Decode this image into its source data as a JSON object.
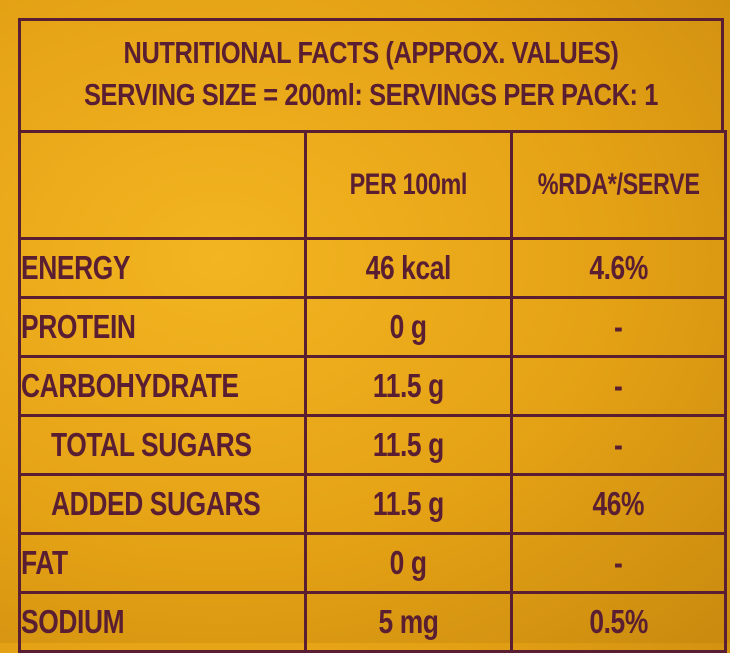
{
  "title": {
    "line1": "NUTRITIONAL FACTS  (APPROX. VALUES)",
    "line2": "SERVING SIZE = 200ml: SERVINGS PER PACK: 1"
  },
  "columns": {
    "nutrient": "",
    "per100": "PER 100ml",
    "rda": "%RDA*/SERVE"
  },
  "rows": [
    {
      "nutrient": "ENERGY",
      "per100": "46 kcal",
      "rda": "4.6%"
    },
    {
      "nutrient": "PROTEIN",
      "per100": "0 g",
      "rda": "-"
    },
    {
      "nutrient": "CARBOHYDRATE",
      "per100": "11.5 g",
      "rda": "-"
    },
    {
      "nutrient": "TOTAL SUGARS",
      "per100": "11.5 g",
      "rda": "-"
    },
    {
      "nutrient": "ADDED SUGARS",
      "per100": "11.5 g",
      "rda": "46%"
    },
    {
      "nutrient": "FAT",
      "per100": "0 g",
      "rda": "-"
    },
    {
      "nutrient": "SODIUM",
      "per100": "5 mg",
      "rda": "0.5%"
    }
  ],
  "colors": {
    "background": "#e7a416",
    "ink": "#5a1e32"
  }
}
